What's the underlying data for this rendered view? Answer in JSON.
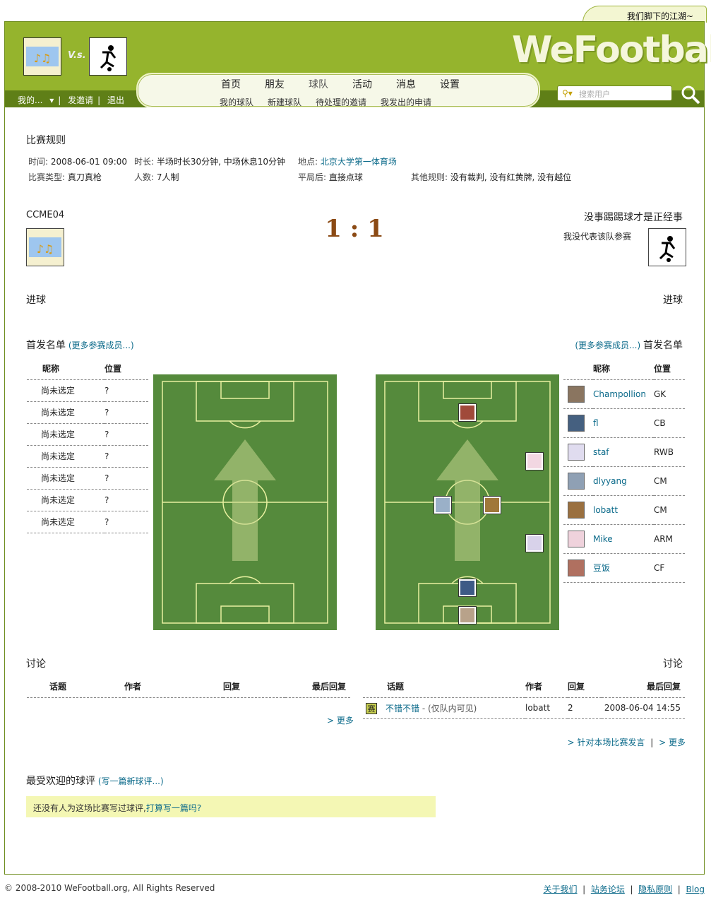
{
  "tagline": "我们脚下的江湖~",
  "header": {
    "vs": "V.s.",
    "my_menu": "我的...",
    "invite": "发邀请",
    "logout": "退出",
    "nav": [
      "首页",
      "朋友",
      "球队",
      "活动",
      "消息",
      "设置"
    ],
    "subnav": [
      "我的球队",
      "新建球队",
      "待处理的邀请",
      "我发出的申请"
    ],
    "logo": "WeFootball",
    "search_placeholder": "搜索用户"
  },
  "rules": {
    "title": "比赛规则",
    "time_label": "时间:",
    "time": "2008-06-01 09:00",
    "duration_label": "时长:",
    "duration": "半场时长30分钟, 中场休息10分钟",
    "place_label": "地点:",
    "place": "北京大学第一体育场",
    "type_label": "比赛类型:",
    "type": "真刀真枪",
    "players_label": "人数:",
    "players": "7人制",
    "tie_label": "平局后:",
    "tie": "直接点球",
    "other_label": "其他规则:",
    "other": "没有裁判, 没有红黄牌, 没有越位"
  },
  "match": {
    "home": "CCME04",
    "away": "没事踢踢球才是正经事",
    "away_note": "我没代表该队参赛",
    "score": "1 : 1",
    "goals_label": "进球"
  },
  "lineup": {
    "title": "首发名单",
    "more": "(更多参赛成员...)",
    "col_name": "昵称",
    "col_pos": "位置",
    "home_rows": [
      {
        "name": "尚未选定",
        "pos": "?"
      },
      {
        "name": "尚未选定",
        "pos": "?"
      },
      {
        "name": "尚未选定",
        "pos": "?"
      },
      {
        "name": "尚未选定",
        "pos": "?"
      },
      {
        "name": "尚未选定",
        "pos": "?"
      },
      {
        "name": "尚未选定",
        "pos": "?"
      },
      {
        "name": "尚未选定",
        "pos": "?"
      }
    ],
    "away_rows": [
      {
        "name": "Champollion",
        "pos": "GK"
      },
      {
        "name": "fl",
        "pos": "CB"
      },
      {
        "name": "staf",
        "pos": "RWB"
      },
      {
        "name": "dlyyang",
        "pos": "CM"
      },
      {
        "name": "lobatt",
        "pos": "CM"
      },
      {
        "name": "Mike",
        "pos": "ARM"
      },
      {
        "name": "豆饭",
        "pos": "CF"
      }
    ]
  },
  "discussion": {
    "title": "讨论",
    "cols": [
      "话题",
      "作者",
      "回复",
      "最后回复"
    ],
    "more": "> 更多",
    "post_link": "> 针对本场比赛发言",
    "sep": "|",
    "away_topics": [
      {
        "icon": "赛",
        "topic": "不错不错",
        "note": "- (仅队内可见)",
        "author": "lobatt",
        "replies": "2",
        "last": "2008-06-04 14:55"
      }
    ]
  },
  "reviews": {
    "title": "最受欢迎的球评",
    "write": "(写一篇新球评...)",
    "empty": "还没有人为这场比赛写过球评,",
    "empty_link": "打算写一篇吗?"
  },
  "footer": {
    "copyright": "© 2008-2010 WeFootball.org, All Rights Reserved",
    "links": [
      "关于我们",
      "站务论坛",
      "隐私原则",
      "Blog"
    ]
  },
  "colors": {
    "header": "#95b42d",
    "header_dark": "#5f7f17",
    "pitch": "#558a3c",
    "score": "#8b4a14",
    "link": "#0b6a8a"
  }
}
